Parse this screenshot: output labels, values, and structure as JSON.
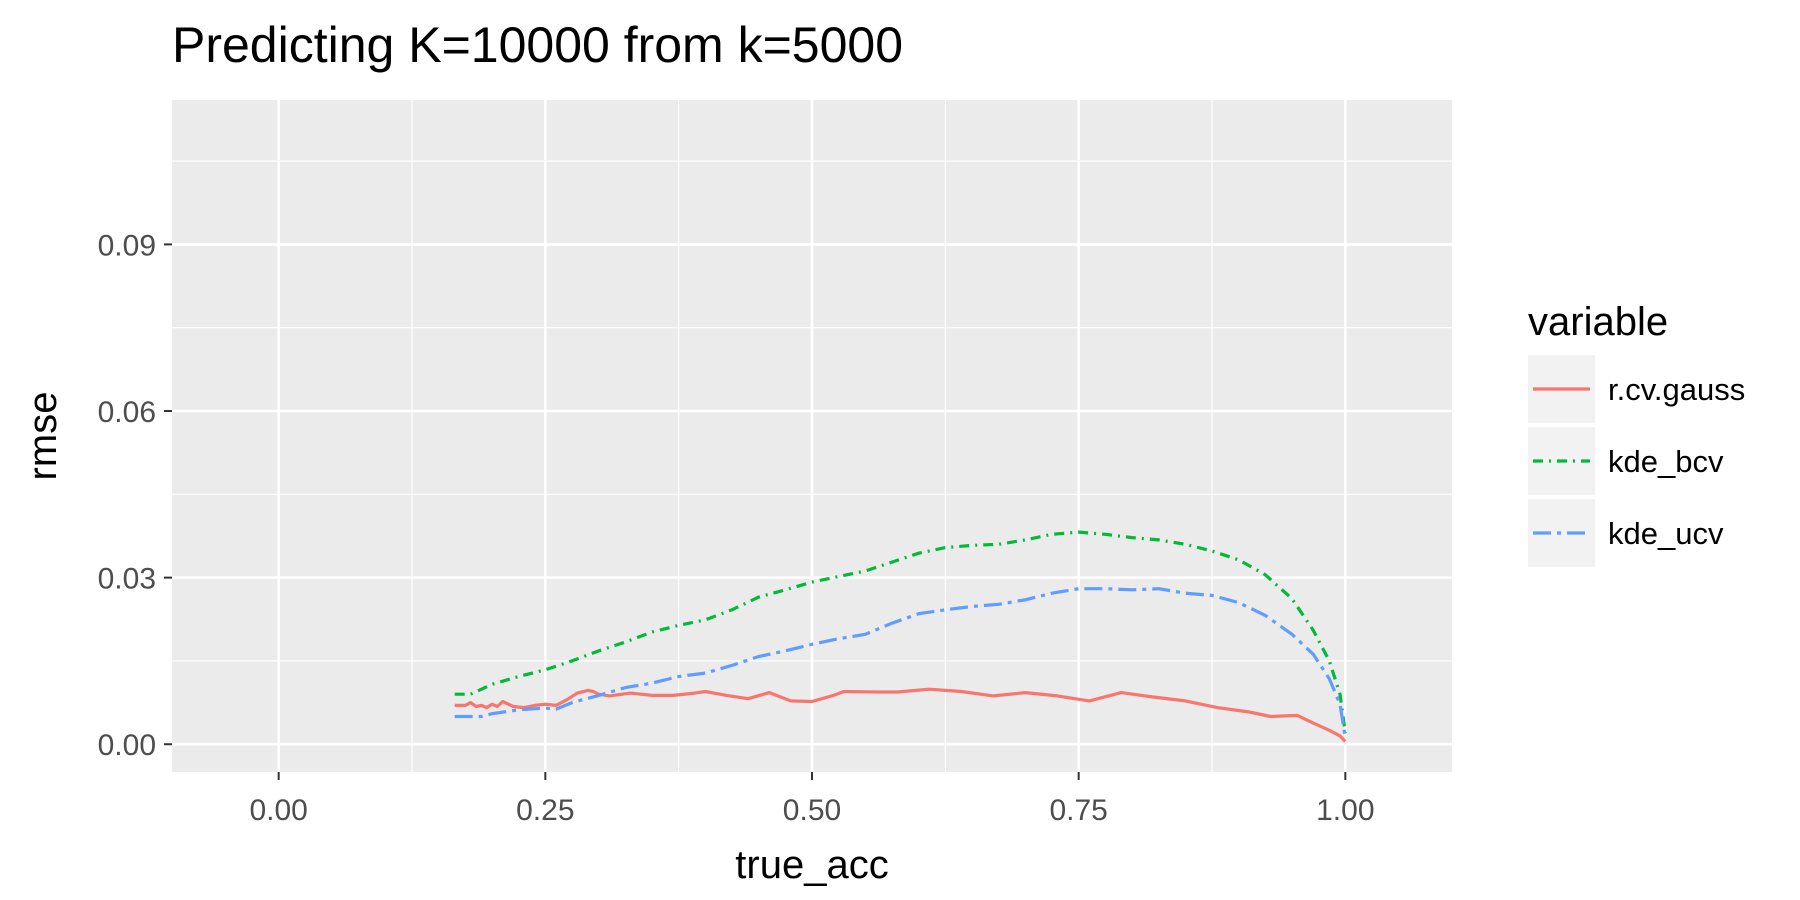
{
  "chart_data": {
    "type": "line",
    "title": "Predicting K=10000 from k=5000",
    "xlabel": "true_acc",
    "ylabel": "rmse",
    "xlim": [
      -0.1,
      1.1
    ],
    "ylim": [
      -0.005,
      0.116
    ],
    "x_ticks": [
      0.0,
      0.25,
      0.5,
      0.75,
      1.0
    ],
    "x_tick_labels": [
      "0.00",
      "0.25",
      "0.50",
      "0.75",
      "1.00"
    ],
    "y_ticks": [
      0.0,
      0.03,
      0.06,
      0.09
    ],
    "y_tick_labels": [
      "0.00",
      "0.03",
      "0.06",
      "0.09"
    ],
    "grid": true,
    "legend": {
      "title": "variable",
      "position": "right"
    },
    "series": [
      {
        "name": "r.cv.gauss",
        "color": "#F8766D",
        "dash": "solid",
        "x": [
          0.165,
          0.175,
          0.18,
          0.185,
          0.19,
          0.195,
          0.2,
          0.205,
          0.21,
          0.22,
          0.23,
          0.24,
          0.25,
          0.26,
          0.27,
          0.28,
          0.29,
          0.295,
          0.3,
          0.31,
          0.33,
          0.35,
          0.37,
          0.39,
          0.4,
          0.42,
          0.44,
          0.46,
          0.48,
          0.5,
          0.52,
          0.53,
          0.56,
          0.58,
          0.61,
          0.64,
          0.67,
          0.7,
          0.73,
          0.76,
          0.79,
          0.82,
          0.85,
          0.88,
          0.91,
          0.93,
          0.955,
          0.97,
          0.985,
          0.995,
          1.0
        ],
        "y": [
          0.007,
          0.007,
          0.0075,
          0.0068,
          0.007,
          0.0066,
          0.0072,
          0.0068,
          0.0077,
          0.0068,
          0.0066,
          0.007,
          0.0072,
          0.007,
          0.008,
          0.0092,
          0.0097,
          0.0095,
          0.009,
          0.0087,
          0.0092,
          0.0088,
          0.0088,
          0.0092,
          0.0095,
          0.0088,
          0.0082,
          0.0093,
          0.0078,
          0.0077,
          0.0088,
          0.0095,
          0.0094,
          0.0094,
          0.0099,
          0.0095,
          0.0087,
          0.0093,
          0.0087,
          0.0078,
          0.0093,
          0.0085,
          0.0078,
          0.0066,
          0.0058,
          0.005,
          0.0052,
          0.0038,
          0.0025,
          0.0015,
          0.0005
        ]
      },
      {
        "name": "kde_bcv",
        "color": "#00BA38",
        "dash": "10 6 2 6",
        "x": [
          0.165,
          0.18,
          0.2,
          0.225,
          0.25,
          0.275,
          0.3,
          0.325,
          0.35,
          0.375,
          0.4,
          0.425,
          0.45,
          0.475,
          0.5,
          0.525,
          0.55,
          0.575,
          0.6,
          0.625,
          0.65,
          0.675,
          0.7,
          0.725,
          0.75,
          0.775,
          0.8,
          0.825,
          0.85,
          0.875,
          0.9,
          0.925,
          0.95,
          0.97,
          0.985,
          0.995,
          1.0
        ],
        "y": [
          0.009,
          0.009,
          0.0108,
          0.0122,
          0.0134,
          0.015,
          0.0168,
          0.0184,
          0.0202,
          0.0214,
          0.0224,
          0.0242,
          0.0265,
          0.0278,
          0.0292,
          0.0302,
          0.0312,
          0.0328,
          0.0344,
          0.0354,
          0.0358,
          0.036,
          0.0368,
          0.0378,
          0.0382,
          0.0378,
          0.0372,
          0.0368,
          0.036,
          0.0348,
          0.0332,
          0.0305,
          0.0262,
          0.0205,
          0.015,
          0.009,
          0.002
        ]
      },
      {
        "name": "kde_ucv",
        "color": "#619CFF",
        "dash": "18 6 4 6",
        "x": [
          0.165,
          0.18,
          0.19,
          0.2,
          0.225,
          0.25,
          0.26,
          0.275,
          0.3,
          0.325,
          0.35,
          0.375,
          0.4,
          0.425,
          0.45,
          0.475,
          0.5,
          0.525,
          0.55,
          0.575,
          0.6,
          0.625,
          0.65,
          0.675,
          0.7,
          0.725,
          0.75,
          0.775,
          0.8,
          0.825,
          0.85,
          0.875,
          0.9,
          0.925,
          0.95,
          0.97,
          0.985,
          0.995,
          1.0
        ],
        "y": [
          0.005,
          0.005,
          0.005,
          0.0055,
          0.0062,
          0.0065,
          0.0063,
          0.0075,
          0.0088,
          0.0102,
          0.011,
          0.0122,
          0.0128,
          0.0142,
          0.0158,
          0.0168,
          0.018,
          0.019,
          0.0198,
          0.0218,
          0.0235,
          0.0242,
          0.0248,
          0.0252,
          0.026,
          0.0272,
          0.028,
          0.028,
          0.0278,
          0.028,
          0.0272,
          0.0268,
          0.0255,
          0.0232,
          0.0198,
          0.0162,
          0.0118,
          0.0072,
          0.0012
        ]
      }
    ]
  }
}
